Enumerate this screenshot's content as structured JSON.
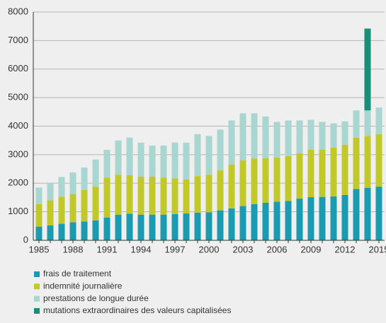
{
  "chart_data": {
    "type": "stacked-bar",
    "categories": [
      "1985",
      null,
      null,
      "1988",
      null,
      null,
      "1991",
      null,
      null,
      "1994",
      null,
      null,
      "1997",
      null,
      null,
      "2000",
      null,
      null,
      "2003",
      null,
      null,
      "2006",
      null,
      null,
      "2009",
      null,
      null,
      "2012",
      null,
      null,
      "2015"
    ],
    "series": [
      {
        "name": "frais de traitement",
        "color": "#1b9bb0",
        "values": [
          480,
          520,
          580,
          630,
          660,
          700,
          800,
          900,
          930,
          900,
          900,
          900,
          920,
          940,
          970,
          980,
          1050,
          1120,
          1200,
          1270,
          1320,
          1350,
          1380,
          1460,
          1510,
          1520,
          1540,
          1590,
          1800,
          1840,
          1880
        ]
      },
      {
        "name": "indemnité journalière",
        "color": "#c3c82a",
        "values": [
          790,
          880,
          950,
          990,
          1100,
          1180,
          1400,
          1400,
          1350,
          1330,
          1330,
          1300,
          1250,
          1190,
          1280,
          1320,
          1400,
          1530,
          1600,
          1600,
          1560,
          1550,
          1570,
          1590,
          1660,
          1650,
          1710,
          1760,
          1800,
          1820,
          1840
        ]
      },
      {
        "name": "prestations de longue durée",
        "color": "#a9d6d0",
        "values": [
          580,
          620,
          690,
          760,
          790,
          950,
          970,
          1200,
          1320,
          1190,
          1090,
          1120,
          1260,
          1290,
          1470,
          1360,
          1430,
          1550,
          1650,
          1580,
          1460,
          1250,
          1250,
          1150,
          1050,
          980,
          850,
          820,
          950,
          890,
          930
        ]
      },
      {
        "name": "mutations extraordinaires des valeurs capitalisées",
        "color": "#1a8f78",
        "values": [
          null,
          null,
          null,
          null,
          null,
          null,
          null,
          null,
          null,
          null,
          null,
          null,
          null,
          null,
          null,
          null,
          null,
          null,
          null,
          null,
          null,
          null,
          null,
          null,
          null,
          null,
          null,
          null,
          null,
          2870,
          null
        ]
      }
    ],
    "ylim": [
      0,
      8000
    ],
    "yticks": [
      0,
      1000,
      2000,
      3000,
      4000,
      5000,
      6000,
      7000,
      8000
    ],
    "grid": true
  }
}
